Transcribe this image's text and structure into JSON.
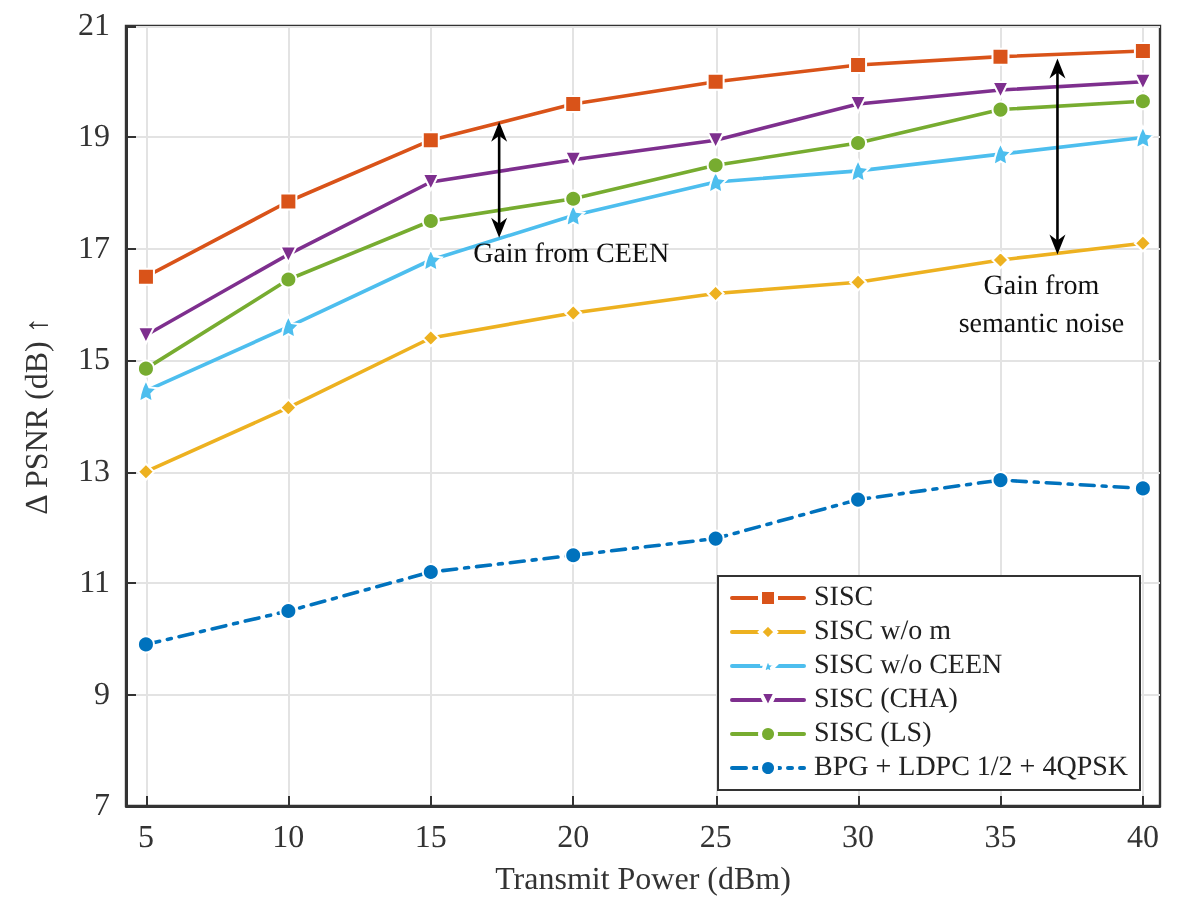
{
  "chart_data": {
    "type": "line",
    "xlabel": "Transmit Power (dBm)",
    "ylabel": "Δ PSNR (dB) ↑",
    "x": [
      5,
      10,
      15,
      20,
      25,
      30,
      35,
      40
    ],
    "xlim": [
      4.3,
      40.6
    ],
    "xticks": [
      5,
      10,
      15,
      20,
      25,
      30,
      35,
      40
    ],
    "ylim": [
      7,
      21
    ],
    "yticks": [
      7,
      9,
      11,
      13,
      15,
      17,
      19,
      21
    ],
    "grid": true,
    "legend": "bottom right",
    "series": [
      {
        "name": "SISC",
        "color": "#d95319",
        "marker": "square",
        "line_style": "solid",
        "values": [
          16.5,
          17.85,
          18.95,
          19.6,
          20.0,
          20.3,
          20.45,
          20.55
        ]
      },
      {
        "name": "SISC w/o m",
        "color": "#edb120",
        "marker": "diamond",
        "line_style": "solid",
        "values": [
          13.0,
          14.15,
          15.4,
          15.85,
          16.2,
          16.4,
          16.8,
          17.1
        ]
      },
      {
        "name": "SISC w/o CEEN",
        "color": "#4dbeee",
        "marker": "star",
        "line_style": "solid",
        "values": [
          14.45,
          15.6,
          16.8,
          17.6,
          18.2,
          18.4,
          18.7,
          19.0
        ]
      },
      {
        "name": "SISC (CHA)",
        "color": "#7e2f8e",
        "marker": "triangle",
        "line_style": "solid",
        "values": [
          15.45,
          16.9,
          18.2,
          18.6,
          18.95,
          19.6,
          19.85,
          20.0
        ]
      },
      {
        "name": "SISC (LS)",
        "color": "#77ac30",
        "marker": "circle",
        "line_style": "solid",
        "values": [
          14.85,
          16.45,
          17.5,
          17.9,
          18.5,
          18.9,
          19.5,
          19.65
        ]
      },
      {
        "name": "BPG + LDPC 1/2 + 4QPSK",
        "color": "#0072bd",
        "marker": "circle",
        "line_style": "dashed",
        "values": [
          9.9,
          10.5,
          11.2,
          11.5,
          11.8,
          12.5,
          12.85,
          12.7
        ]
      }
    ],
    "annotations": [
      {
        "text": "Gain from CEEN",
        "x": 17.4,
        "y": 17.2
      },
      {
        "text": "Gain from\nsemantic noise",
        "x": 37,
        "y": 16.9
      }
    ]
  }
}
